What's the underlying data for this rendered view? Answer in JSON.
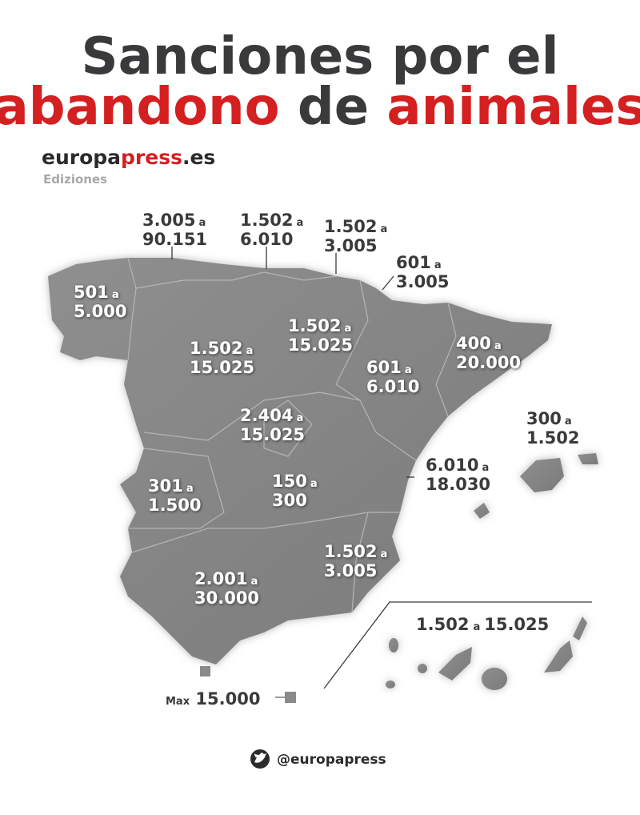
{
  "title": {
    "line1": "Sanciones por el",
    "line2_a": "abandono",
    "line2_b": "de",
    "line2_c": "animales"
  },
  "brand": {
    "part1": "europa",
    "part2": "press",
    "part3": ".es",
    "sub": "Ediziones"
  },
  "regions": [
    {
      "min": "3.005",
      "sep": "a",
      "max": "90.151"
    },
    {
      "min": "1.502",
      "sep": "a",
      "max": "6.010"
    },
    {
      "min": "1.502",
      "sep": "a",
      "max": "3.005"
    },
    {
      "min": "601",
      "sep": "a",
      "max": "3.005"
    },
    {
      "min": "501",
      "sep": "a",
      "max": "5.000"
    },
    {
      "min": "1.502",
      "sep": "a",
      "max": "15.025"
    },
    {
      "min": "1.502",
      "sep": "a",
      "max": "15.025"
    },
    {
      "min": "601",
      "sep": "a",
      "max": "6.010"
    },
    {
      "min": "400",
      "sep": "a",
      "max": "20.000"
    },
    {
      "min": "2.404",
      "sep": "a",
      "max": "15.025"
    },
    {
      "min": "300",
      "sep": "a",
      "max": "1.502"
    },
    {
      "min": "6.010",
      "sep": "a",
      "max": "18.030"
    },
    {
      "min": "301",
      "sep": "a",
      "max": "1.500"
    },
    {
      "min": "150",
      "sep": "a",
      "max": "300"
    },
    {
      "min": "1.502",
      "sep": "a",
      "max": "3.005"
    },
    {
      "min": "2.001",
      "sep": "a",
      "max": "30.000"
    }
  ],
  "canarias": {
    "min": "1.502",
    "sep": "a",
    "max": "15.025"
  },
  "ceuta_melilla": {
    "prefix": "Max",
    "value": "15.000"
  },
  "footer": {
    "handle": "@europapress"
  }
}
